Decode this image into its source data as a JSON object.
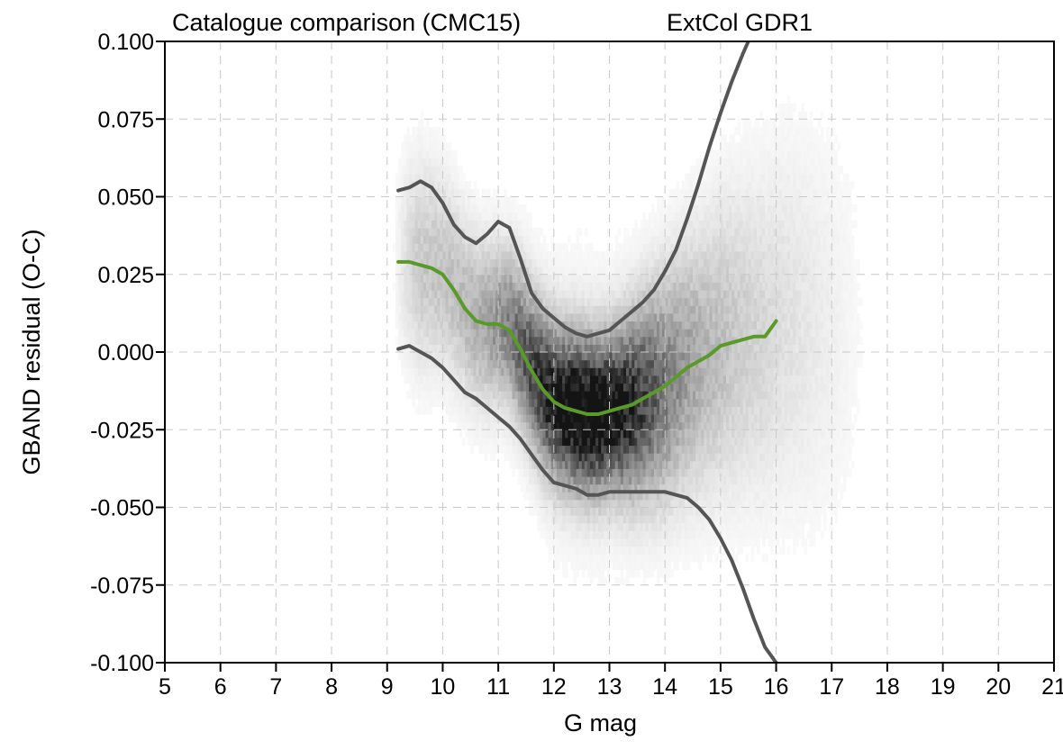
{
  "chart_data": {
    "type": "heatmap",
    "title": "Catalogue comparison (CMC15)",
    "subtitle": "ExtCol GDR1",
    "xlabel": "G mag",
    "ylabel": "GBAND residual (O-C)",
    "xlim": [
      5,
      21
    ],
    "ylim": [
      -0.1,
      0.1
    ],
    "grid": true,
    "x_ticks": [
      "5",
      "6",
      "7",
      "8",
      "9",
      "10",
      "11",
      "12",
      "13",
      "14",
      "15",
      "16",
      "17",
      "18",
      "19",
      "20",
      "21"
    ],
    "y_ticks": [
      "0.100",
      "0.075",
      "0.050",
      "0.025",
      "0.000",
      "-0.025",
      "-0.050",
      "-0.075",
      "-0.100"
    ],
    "y_tick_values": [
      0.1,
      0.075,
      0.05,
      0.025,
      0.0,
      -0.025,
      -0.05,
      -0.075,
      -0.1
    ],
    "density_description": "2D histogram of residual vs G magnitude, grayscale density, non-zero between G 9.1 and 17.8",
    "series": [
      {
        "role": "upper-percentile",
        "color": "#555555",
        "x": [
          9.2,
          9.4,
          9.6,
          9.8,
          10.0,
          10.2,
          10.4,
          10.6,
          10.8,
          11.0,
          11.2,
          11.4,
          11.6,
          11.8,
          12.0,
          12.2,
          12.4,
          12.6,
          12.8,
          13.0,
          13.2,
          13.4,
          13.6,
          13.8,
          14.0,
          14.2,
          14.4,
          14.6,
          14.8,
          15.0,
          15.2,
          15.4,
          15.5
        ],
        "y": [
          0.052,
          0.053,
          0.055,
          0.053,
          0.048,
          0.041,
          0.037,
          0.035,
          0.038,
          0.042,
          0.04,
          0.03,
          0.019,
          0.014,
          0.011,
          0.008,
          0.006,
          0.005,
          0.006,
          0.007,
          0.01,
          0.013,
          0.016,
          0.02,
          0.026,
          0.033,
          0.043,
          0.054,
          0.066,
          0.077,
          0.087,
          0.096,
          0.1
        ]
      },
      {
        "role": "median",
        "color": "#5a9a2a",
        "x": [
          9.2,
          9.4,
          9.6,
          9.8,
          10.0,
          10.2,
          10.4,
          10.6,
          10.8,
          11.0,
          11.2,
          11.4,
          11.6,
          11.8,
          12.0,
          12.2,
          12.4,
          12.6,
          12.8,
          13.0,
          13.2,
          13.4,
          13.6,
          13.8,
          14.0,
          14.2,
          14.4,
          14.6,
          14.8,
          15.0,
          15.2,
          15.4,
          15.6,
          15.8,
          16.0
        ],
        "y": [
          0.029,
          0.029,
          0.028,
          0.027,
          0.025,
          0.02,
          0.014,
          0.01,
          0.009,
          0.009,
          0.007,
          0.001,
          -0.006,
          -0.012,
          -0.016,
          -0.018,
          -0.019,
          -0.02,
          -0.02,
          -0.019,
          -0.018,
          -0.017,
          -0.015,
          -0.013,
          -0.011,
          -0.008,
          -0.005,
          -0.003,
          -0.001,
          0.002,
          0.003,
          0.004,
          0.005,
          0.005,
          0.01
        ]
      },
      {
        "role": "lower-percentile",
        "color": "#555555",
        "x": [
          9.2,
          9.4,
          9.6,
          9.8,
          10.0,
          10.2,
          10.4,
          10.6,
          10.8,
          11.0,
          11.2,
          11.4,
          11.6,
          11.8,
          12.0,
          12.2,
          12.4,
          12.6,
          12.8,
          13.0,
          13.2,
          13.4,
          13.6,
          13.8,
          14.0,
          14.2,
          14.4,
          14.6,
          14.8,
          15.0,
          15.2,
          15.4,
          15.6,
          15.8,
          16.0
        ],
        "y": [
          0.001,
          0.002,
          0.0,
          -0.002,
          -0.005,
          -0.009,
          -0.013,
          -0.015,
          -0.018,
          -0.021,
          -0.024,
          -0.028,
          -0.033,
          -0.038,
          -0.042,
          -0.043,
          -0.044,
          -0.046,
          -0.046,
          -0.045,
          -0.045,
          -0.045,
          -0.045,
          -0.045,
          -0.045,
          -0.046,
          -0.047,
          -0.05,
          -0.054,
          -0.06,
          -0.067,
          -0.076,
          -0.086,
          -0.095,
          -0.1
        ]
      }
    ]
  }
}
